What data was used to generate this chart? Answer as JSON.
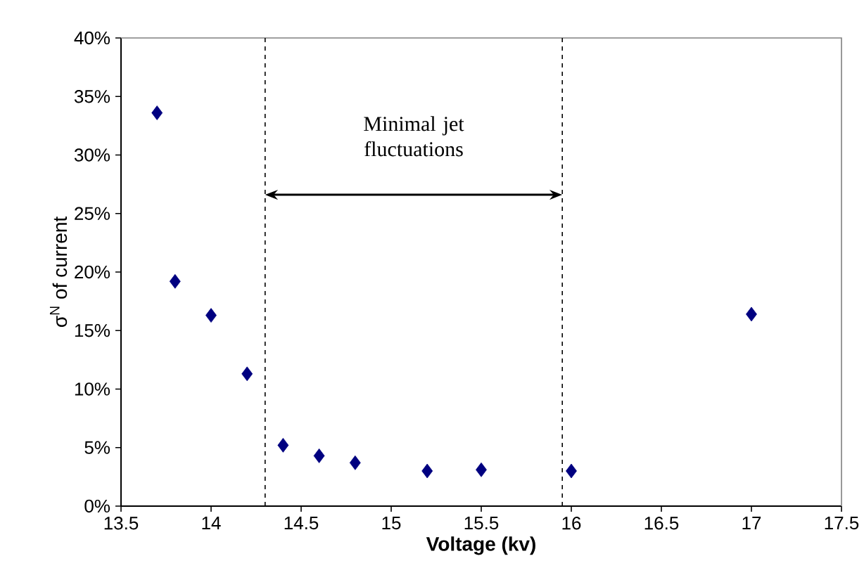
{
  "chart_data": {
    "type": "scatter",
    "xlabel": "Voltage (kv)",
    "ylabel": "σ$^{N}$ of current",
    "x": [
      13.7,
      13.8,
      14.0,
      14.2,
      14.4,
      14.6,
      14.8,
      15.2,
      15.5,
      16.0,
      17.0
    ],
    "series": [
      {
        "color": "#000080",
        "values": [
          33.6,
          19.2,
          16.3,
          11.3,
          5.2,
          4.3,
          3.7,
          3.0,
          3.1,
          3.0,
          16.4
        ]
      }
    ],
    "marker": "diamond",
    "xlim": [
      13.5,
      17.5
    ],
    "ylim": [
      0,
      40
    ],
    "xticks": [
      13.5,
      14,
      14.5,
      15,
      15.5,
      16,
      16.5,
      17,
      17.5
    ],
    "yticks": [
      {
        "value": 0,
        "label": "0%"
      },
      {
        "value": 5,
        "label": "5%"
      },
      {
        "value": 10,
        "label": "10%"
      },
      {
        "value": 15,
        "label": "15%"
      },
      {
        "value": 20,
        "label": "20%"
      },
      {
        "value": 25,
        "label": "25%"
      },
      {
        "value": 30,
        "label": "30%"
      },
      {
        "value": 35,
        "label": "35%"
      },
      {
        "value": 40,
        "label": "40%"
      }
    ],
    "ref_lines": [
      {
        "axis": "x",
        "value": 14.3,
        "line_style": "dashed",
        "color": "#000000"
      },
      {
        "axis": "x",
        "value": 15.95,
        "line_style": "dashed",
        "color": "#000000"
      }
    ],
    "annotations": [
      "Minimal jet fluctuations"
    ]
  }
}
